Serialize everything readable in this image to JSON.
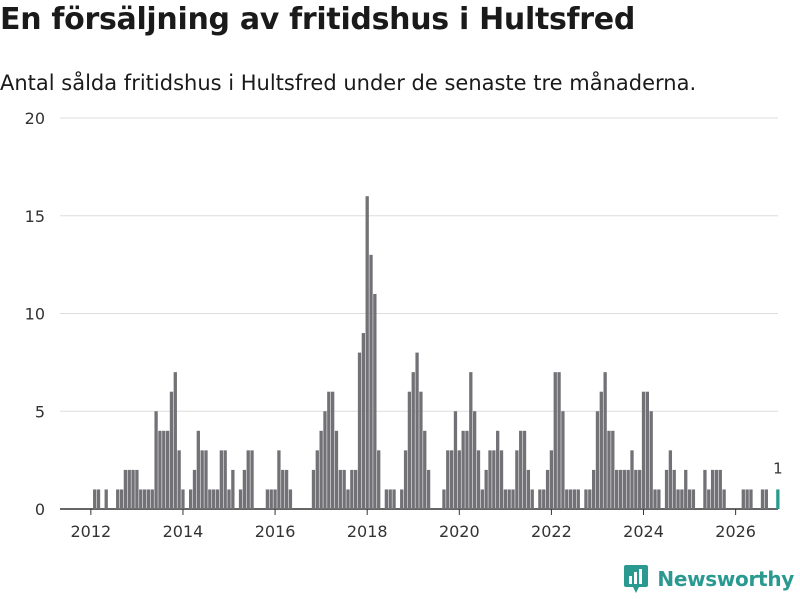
{
  "header": {
    "title": "En försäljning av fritidshus i Hultsfred",
    "subtitle": "Antal sålda fritidshus i Hultsfred under de senaste tre månaderna."
  },
  "brand": {
    "name": "Newsworthy",
    "color": "#2a9a91",
    "icon": "bar-chart-pin-icon"
  },
  "colors": {
    "bars": "#727176",
    "highlight": "#2a9a91",
    "grid": "#dddddd",
    "axis": "#333333"
  },
  "chart_data": {
    "type": "bar",
    "title": "En försäljning av fritidshus i Hultsfred",
    "subtitle": "Antal sålda fritidshus i Hultsfred under de senaste tre månaderna.",
    "xlabel": "",
    "ylabel": "",
    "ylim": [
      0,
      20
    ],
    "yticks": [
      0,
      5,
      10,
      15,
      20
    ],
    "x_tick_labels": [
      "2012",
      "2014",
      "2016",
      "2018",
      "2020",
      "2022",
      "2024",
      "2026"
    ],
    "x_tick_years": [
      2012,
      2014,
      2016,
      2018,
      2020,
      2022,
      2024,
      2026
    ],
    "xlim": [
      2011.33,
      2026.92
    ],
    "start": "2011-08",
    "frequency": "monthly",
    "values": [
      0,
      0,
      0,
      0,
      0,
      0,
      1,
      1,
      0,
      1,
      0,
      0,
      1,
      1,
      2,
      2,
      2,
      2,
      1,
      1,
      1,
      1,
      5,
      4,
      4,
      4,
      6,
      7,
      3,
      1,
      0,
      1,
      2,
      4,
      3,
      3,
      1,
      1,
      1,
      3,
      3,
      1,
      2,
      0,
      1,
      2,
      3,
      3,
      0,
      0,
      0,
      1,
      1,
      1,
      3,
      2,
      2,
      1,
      0,
      0,
      0,
      0,
      0,
      2,
      3,
      4,
      5,
      6,
      6,
      4,
      2,
      2,
      1,
      2,
      2,
      8,
      9,
      16,
      13,
      11,
      3,
      0,
      1,
      1,
      1,
      0,
      1,
      3,
      6,
      7,
      8,
      6,
      4,
      2,
      0,
      0,
      0,
      1,
      3,
      3,
      5,
      3,
      4,
      4,
      7,
      5,
      3,
      1,
      2,
      3,
      3,
      4,
      3,
      1,
      1,
      1,
      3,
      4,
      4,
      2,
      1,
      0,
      1,
      1,
      2,
      3,
      7,
      7,
      5,
      1,
      1,
      1,
      1,
      0,
      1,
      1,
      2,
      5,
      6,
      7,
      4,
      4,
      2,
      2,
      2,
      2,
      3,
      2,
      2,
      6,
      6,
      5,
      1,
      1,
      0,
      2,
      3,
      2,
      1,
      1,
      2,
      1,
      1,
      0,
      0,
      2,
      1,
      2,
      2,
      2,
      1,
      0,
      0,
      0,
      0,
      1,
      1,
      1,
      0,
      0,
      1,
      1,
      0,
      0,
      1
    ],
    "series": [
      {
        "name": "Antal sålda fritidshus",
        "values_ref": "values"
      }
    ],
    "highlight_last": true,
    "annotations": [
      {
        "text": "1",
        "target": "last"
      }
    ]
  }
}
